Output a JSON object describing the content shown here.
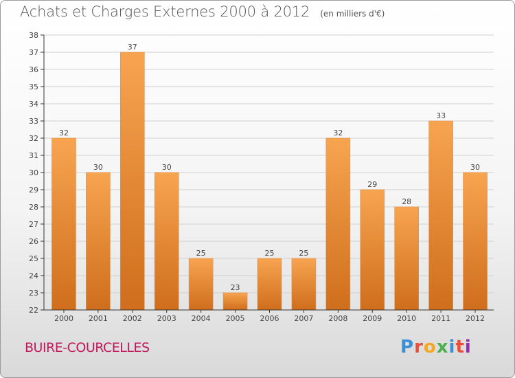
{
  "header": {
    "title": "Achats et Charges Externes 2000 à 2012",
    "unit": "(en milliers d'€)"
  },
  "footer": {
    "commune": "BUIRE-COURCELLES",
    "logo_letters": [
      "P",
      "r",
      "o",
      "x",
      "i",
      "t",
      "i"
    ],
    "logo_colors": [
      "#3a8fd6",
      "#e84e3c",
      "#f5a623",
      "#4caf50",
      "#3a8fd6",
      "#e84e3c",
      "#9c27b0"
    ]
  },
  "colors": {
    "bar_top": "#f7a450",
    "bar_bottom": "#cf6e1c",
    "axis": "#333333",
    "grid": "#d0d0d0",
    "label": "#444444"
  },
  "chart_data": {
    "type": "bar",
    "categories": [
      "2000",
      "2001",
      "2002",
      "2003",
      "2004",
      "2005",
      "2006",
      "2007",
      "2008",
      "2009",
      "2010",
      "2011",
      "2012"
    ],
    "values": [
      32,
      30,
      37,
      30,
      25,
      23,
      25,
      25,
      32,
      29,
      28,
      33,
      30
    ],
    "title": "Achats et Charges Externes 2000 à 2012",
    "xlabel": "",
    "ylabel": "",
    "ylim": [
      22,
      38
    ],
    "yticks": [
      22,
      23,
      24,
      25,
      26,
      27,
      28,
      29,
      30,
      31,
      32,
      33,
      34,
      35,
      36,
      37,
      38
    ],
    "grid": true,
    "data_labels": true
  }
}
